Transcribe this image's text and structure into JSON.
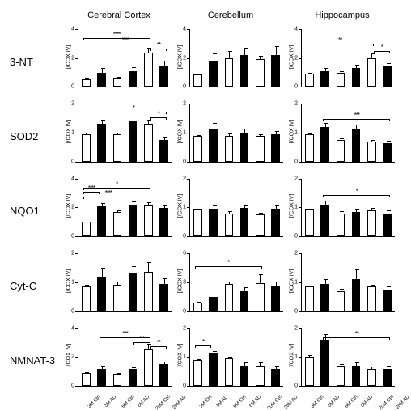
{
  "columns": [
    "Cerebral Cortex",
    "Cerebellum",
    "Hippocampus"
  ],
  "rows": [
    "3-NT",
    "SOD2",
    "NQO1",
    "Cyt-C",
    "NMNAT-3"
  ],
  "xlabels": [
    "3M Ctrl",
    "3M AD",
    "6M Ctrl",
    "6M AD",
    "20M Ctrl",
    "20M AD"
  ],
  "ylabel": "[/COX IV]",
  "colors": {
    "open": "#ffffff",
    "solid": "#000000",
    "stroke": "#000000",
    "bg": "#ffffff"
  },
  "font": {
    "row": 13,
    "col": 11,
    "tick": 7,
    "xlabel": 6,
    "stars": 8
  },
  "cells": [
    [
      {
        "ymax": 4,
        "values": [
          0.5,
          1.0,
          0.6,
          1.1,
          2.4,
          1.5
        ],
        "errs": [
          0.15,
          0.3,
          0.2,
          0.25,
          0.4,
          0.3
        ],
        "sig": [
          {
            "from": 0,
            "to": 4,
            "stars": "****",
            "y": 3.6
          },
          {
            "from": 1,
            "to": 4,
            "stars": "****",
            "y": 3.2
          },
          {
            "from": 4,
            "to": 5,
            "stars": "**",
            "y": 2.9
          }
        ]
      },
      {
        "ymax": 4,
        "values": [
          0.85,
          1.8,
          2.0,
          2.2,
          1.9,
          2.2
        ],
        "errs": [
          0.1,
          0.5,
          0.6,
          0.5,
          0.3,
          0.6
        ],
        "sig": []
      },
      {
        "ymax": 4,
        "values": [
          0.9,
          1.1,
          1.0,
          1.3,
          2.0,
          1.4
        ],
        "errs": [
          0.15,
          0.2,
          0.15,
          0.25,
          0.4,
          0.25
        ],
        "sig": [
          {
            "from": 0,
            "to": 4,
            "stars": "**",
            "y": 3.2
          },
          {
            "from": 4,
            "to": 5,
            "stars": "*",
            "y": 2.7
          }
        ]
      }
    ],
    [
      {
        "ymax": 2,
        "values": [
          0.95,
          1.3,
          0.95,
          1.4,
          1.3,
          0.75
        ],
        "errs": [
          0.1,
          0.15,
          0.1,
          0.15,
          0.2,
          0.1
        ],
        "sig": [
          {
            "from": 1,
            "to": 5,
            "stars": "*",
            "y": 1.85
          },
          {
            "from": 4,
            "to": 5,
            "stars": "*",
            "y": 1.65
          }
        ]
      },
      {
        "ymax": 2,
        "values": [
          0.9,
          1.15,
          0.9,
          1.0,
          0.9,
          0.95
        ],
        "errs": [
          0.05,
          0.2,
          0.1,
          0.15,
          0.08,
          0.1
        ],
        "sig": []
      },
      {
        "ymax": 2,
        "values": [
          0.95,
          1.2,
          0.75,
          1.15,
          0.7,
          0.65
        ],
        "errs": [
          0.05,
          0.15,
          0.08,
          0.12,
          0.1,
          0.07
        ],
        "sig": [
          {
            "from": 1,
            "to": 5,
            "stars": "***",
            "y": 1.6
          }
        ]
      }
    ],
    [
      {
        "ymax": 4,
        "values": [
          1.0,
          2.1,
          1.7,
          2.2,
          2.2,
          2.0
        ],
        "errs": [
          0.1,
          0.2,
          0.2,
          0.2,
          0.25,
          0.2
        ],
        "sig": [
          {
            "from": 0,
            "to": 1,
            "stars": "****",
            "y": 3.3
          },
          {
            "from": 0,
            "to": 3,
            "stars": "****",
            "y": 3.0
          },
          {
            "from": 0,
            "to": 4,
            "stars": "*",
            "y": 3.6
          }
        ]
      },
      {
        "ymax": 2,
        "values": [
          0.95,
          0.95,
          0.8,
          1.0,
          0.75,
          0.95
        ],
        "errs": [
          0.05,
          0.15,
          0.1,
          0.1,
          0.1,
          0.15
        ],
        "sig": []
      },
      {
        "ymax": 2,
        "values": [
          0.95,
          1.1,
          0.8,
          0.85,
          0.9,
          0.8
        ],
        "errs": [
          0.05,
          0.15,
          0.1,
          0.1,
          0.12,
          0.1
        ],
        "sig": [
          {
            "from": 1,
            "to": 5,
            "stars": "*",
            "y": 1.55
          }
        ]
      }
    ],
    [
      {
        "ymax": 2,
        "values": [
          0.85,
          1.2,
          0.9,
          1.3,
          1.35,
          0.95
        ],
        "errs": [
          0.1,
          0.3,
          0.15,
          0.25,
          0.4,
          0.2
        ],
        "sig": []
      },
      {
        "ymax": 6,
        "values": [
          0.9,
          1.5,
          2.8,
          2.1,
          2.9,
          2.6
        ],
        "errs": [
          0.15,
          0.3,
          0.4,
          0.4,
          1.1,
          0.5
        ],
        "sig": [
          {
            "from": 0,
            "to": 4,
            "stars": "*",
            "y": 5.0
          }
        ]
      },
      {
        "ymax": 2,
        "values": [
          0.85,
          0.95,
          0.7,
          1.1,
          0.85,
          0.75
        ],
        "errs": [
          0.05,
          0.15,
          0.1,
          0.35,
          0.1,
          0.1
        ],
        "sig": []
      }
    ],
    [
      {
        "ymax": 4,
        "values": [
          0.9,
          1.2,
          0.85,
          1.15,
          2.6,
          1.5
        ],
        "errs": [
          0.1,
          0.2,
          0.1,
          0.15,
          0.4,
          0.2
        ],
        "sig": [
          {
            "from": 1,
            "to": 4,
            "stars": "***",
            "y": 3.6
          },
          {
            "from": 3,
            "to": 4,
            "stars": "***",
            "y": 3.25
          },
          {
            "from": 4,
            "to": 5,
            "stars": "**",
            "y": 2.95
          }
        ]
      },
      {
        "ymax": 2,
        "values": [
          0.9,
          1.15,
          0.95,
          0.7,
          0.7,
          0.6
        ],
        "errs": [
          0.05,
          0.05,
          0.1,
          0.1,
          0.15,
          0.1
        ],
        "sig": [
          {
            "from": 0,
            "to": 1,
            "stars": "*",
            "y": 1.5
          }
        ]
      },
      {
        "ymax": 2,
        "values": [
          1.0,
          1.6,
          0.7,
          0.7,
          0.6,
          0.6
        ],
        "errs": [
          0.1,
          0.2,
          0.1,
          0.1,
          0.1,
          0.1
        ],
        "sig": [
          {
            "from": 1,
            "to": 5,
            "stars": "**",
            "y": 1.8
          }
        ]
      }
    ]
  ]
}
